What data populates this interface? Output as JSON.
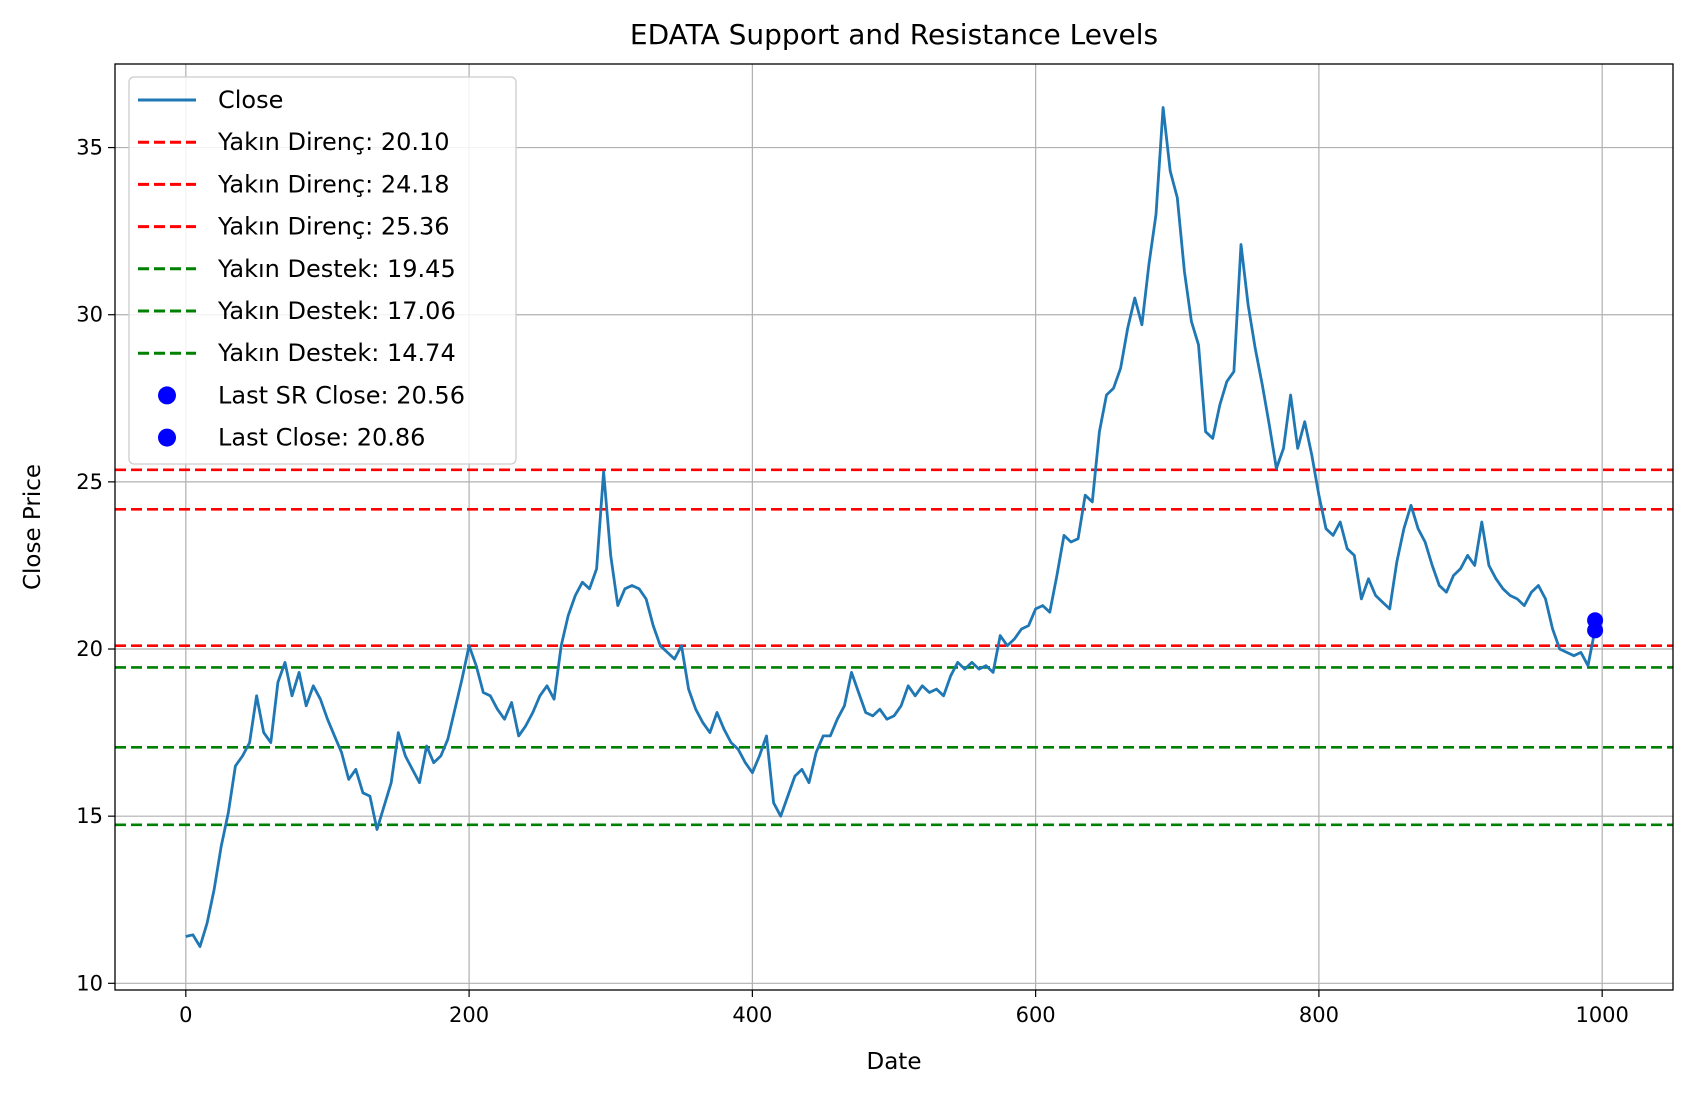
{
  "chart_data": {
    "type": "line",
    "title": "EDATA Support and Resistance Levels",
    "xlabel": "Date",
    "ylabel": "Close Price",
    "xlim": [
      -50,
      1050
    ],
    "ylim": [
      9.8,
      37.5
    ],
    "xticks": [
      0,
      200,
      400,
      600,
      800,
      1000
    ],
    "yticks": [
      10,
      15,
      20,
      25,
      30,
      35
    ],
    "grid": true,
    "legend_position": "upper-left",
    "series": [
      {
        "name": "Close",
        "color": "#1f77b4",
        "style": "line",
        "points": [
          [
            0,
            11.4
          ],
          [
            5,
            11.45
          ],
          [
            10,
            11.1
          ],
          [
            15,
            11.8
          ],
          [
            20,
            12.8
          ],
          [
            25,
            14.1
          ],
          [
            30,
            15.1
          ],
          [
            35,
            16.5
          ],
          [
            40,
            16.8
          ],
          [
            45,
            17.2
          ],
          [
            50,
            18.6
          ],
          [
            55,
            17.5
          ],
          [
            60,
            17.2
          ],
          [
            65,
            19.0
          ],
          [
            70,
            19.6
          ],
          [
            75,
            18.6
          ],
          [
            80,
            19.3
          ],
          [
            85,
            18.3
          ],
          [
            90,
            18.9
          ],
          [
            95,
            18.5
          ],
          [
            100,
            17.9
          ],
          [
            105,
            17.4
          ],
          [
            110,
            16.9
          ],
          [
            115,
            16.1
          ],
          [
            120,
            16.4
          ],
          [
            125,
            15.7
          ],
          [
            130,
            15.6
          ],
          [
            135,
            14.6
          ],
          [
            140,
            15.3
          ],
          [
            145,
            16.0
          ],
          [
            150,
            17.5
          ],
          [
            155,
            16.8
          ],
          [
            160,
            16.4
          ],
          [
            165,
            16.0
          ],
          [
            170,
            17.1
          ],
          [
            175,
            16.6
          ],
          [
            180,
            16.8
          ],
          [
            185,
            17.3
          ],
          [
            190,
            18.2
          ],
          [
            195,
            19.1
          ],
          [
            200,
            20.1
          ],
          [
            205,
            19.5
          ],
          [
            210,
            18.7
          ],
          [
            215,
            18.6
          ],
          [
            220,
            18.2
          ],
          [
            225,
            17.9
          ],
          [
            230,
            18.4
          ],
          [
            235,
            17.4
          ],
          [
            240,
            17.7
          ],
          [
            245,
            18.1
          ],
          [
            250,
            18.6
          ],
          [
            255,
            18.9
          ],
          [
            260,
            18.5
          ],
          [
            265,
            20.1
          ],
          [
            270,
            21.0
          ],
          [
            275,
            21.6
          ],
          [
            280,
            22.0
          ],
          [
            285,
            21.8
          ],
          [
            290,
            22.4
          ],
          [
            295,
            25.3
          ],
          [
            300,
            22.8
          ],
          [
            305,
            21.3
          ],
          [
            310,
            21.8
          ],
          [
            315,
            21.9
          ],
          [
            320,
            21.8
          ],
          [
            325,
            21.5
          ],
          [
            330,
            20.7
          ],
          [
            335,
            20.1
          ],
          [
            340,
            19.9
          ],
          [
            345,
            19.7
          ],
          [
            350,
            20.1
          ],
          [
            355,
            18.8
          ],
          [
            360,
            18.2
          ],
          [
            365,
            17.8
          ],
          [
            370,
            17.5
          ],
          [
            375,
            18.1
          ],
          [
            380,
            17.6
          ],
          [
            385,
            17.2
          ],
          [
            390,
            17.0
          ],
          [
            395,
            16.6
          ],
          [
            400,
            16.3
          ],
          [
            405,
            16.8
          ],
          [
            410,
            17.4
          ],
          [
            415,
            15.4
          ],
          [
            420,
            15.0
          ],
          [
            425,
            15.6
          ],
          [
            430,
            16.2
          ],
          [
            435,
            16.4
          ],
          [
            440,
            16.0
          ],
          [
            445,
            16.9
          ],
          [
            450,
            17.4
          ],
          [
            455,
            17.4
          ],
          [
            460,
            17.9
          ],
          [
            465,
            18.3
          ],
          [
            470,
            19.3
          ],
          [
            475,
            18.7
          ],
          [
            480,
            18.1
          ],
          [
            485,
            18.0
          ],
          [
            490,
            18.2
          ],
          [
            495,
            17.9
          ],
          [
            500,
            18.0
          ],
          [
            505,
            18.3
          ],
          [
            510,
            18.9
          ],
          [
            515,
            18.6
          ],
          [
            520,
            18.9
          ],
          [
            525,
            18.7
          ],
          [
            530,
            18.8
          ],
          [
            535,
            18.6
          ],
          [
            540,
            19.2
          ],
          [
            545,
            19.6
          ],
          [
            550,
            19.4
          ],
          [
            555,
            19.6
          ],
          [
            560,
            19.4
          ],
          [
            565,
            19.5
          ],
          [
            570,
            19.3
          ],
          [
            575,
            20.4
          ],
          [
            580,
            20.1
          ],
          [
            585,
            20.3
          ],
          [
            590,
            20.6
          ],
          [
            595,
            20.7
          ],
          [
            600,
            21.2
          ],
          [
            605,
            21.3
          ],
          [
            610,
            21.1
          ],
          [
            615,
            22.2
          ],
          [
            620,
            23.4
          ],
          [
            625,
            23.2
          ],
          [
            630,
            23.3
          ],
          [
            635,
            24.6
          ],
          [
            640,
            24.4
          ],
          [
            645,
            26.5
          ],
          [
            650,
            27.6
          ],
          [
            655,
            27.8
          ],
          [
            660,
            28.4
          ],
          [
            665,
            29.6
          ],
          [
            670,
            30.5
          ],
          [
            675,
            29.7
          ],
          [
            680,
            31.5
          ],
          [
            685,
            33.0
          ],
          [
            690,
            36.2
          ],
          [
            695,
            34.3
          ],
          [
            700,
            33.5
          ],
          [
            705,
            31.3
          ],
          [
            710,
            29.8
          ],
          [
            715,
            29.1
          ],
          [
            720,
            26.5
          ],
          [
            725,
            26.3
          ],
          [
            730,
            27.3
          ],
          [
            735,
            28.0
          ],
          [
            740,
            28.3
          ],
          [
            745,
            32.1
          ],
          [
            750,
            30.3
          ],
          [
            755,
            29.0
          ],
          [
            760,
            27.9
          ],
          [
            765,
            26.7
          ],
          [
            770,
            25.4
          ],
          [
            775,
            26.0
          ],
          [
            780,
            27.6
          ],
          [
            785,
            26.0
          ],
          [
            790,
            26.8
          ],
          [
            795,
            25.8
          ],
          [
            800,
            24.6
          ],
          [
            805,
            23.6
          ],
          [
            810,
            23.4
          ],
          [
            815,
            23.8
          ],
          [
            820,
            23.0
          ],
          [
            825,
            22.8
          ],
          [
            830,
            21.5
          ],
          [
            835,
            22.1
          ],
          [
            840,
            21.6
          ],
          [
            845,
            21.4
          ],
          [
            850,
            21.2
          ],
          [
            855,
            22.6
          ],
          [
            860,
            23.6
          ],
          [
            865,
            24.3
          ],
          [
            870,
            23.6
          ],
          [
            875,
            23.2
          ],
          [
            880,
            22.5
          ],
          [
            885,
            21.9
          ],
          [
            890,
            21.7
          ],
          [
            895,
            22.2
          ],
          [
            900,
            22.4
          ],
          [
            905,
            22.8
          ],
          [
            910,
            22.5
          ],
          [
            915,
            23.8
          ],
          [
            920,
            22.5
          ],
          [
            925,
            22.1
          ],
          [
            930,
            21.8
          ],
          [
            935,
            21.6
          ],
          [
            940,
            21.5
          ],
          [
            945,
            21.3
          ],
          [
            950,
            21.7
          ],
          [
            955,
            21.9
          ],
          [
            960,
            21.5
          ],
          [
            965,
            20.6
          ],
          [
            970,
            20.0
          ],
          [
            975,
            19.9
          ],
          [
            980,
            19.8
          ],
          [
            985,
            19.9
          ],
          [
            990,
            19.5
          ],
          [
            995,
            20.6
          ],
          [
            998,
            20.9
          ]
        ]
      }
    ],
    "hlines": [
      {
        "label": "Yakın Direnç: 20.10",
        "y": 20.1,
        "color": "#ff0000"
      },
      {
        "label": "Yakın Direnç: 24.18",
        "y": 24.18,
        "color": "#ff0000"
      },
      {
        "label": "Yakın Direnç: 25.36",
        "y": 25.36,
        "color": "#ff0000"
      },
      {
        "label": "Yakın Destek: 19.45",
        "y": 19.45,
        "color": "#008000"
      },
      {
        "label": "Yakın Destek: 17.06",
        "y": 17.06,
        "color": "#008000"
      },
      {
        "label": "Yakın Destek: 14.74",
        "y": 14.74,
        "color": "#008000"
      }
    ],
    "markers": [
      {
        "label": "Last SR Close: 20.56",
        "x": 995,
        "y": 20.56,
        "color": "#0000ff"
      },
      {
        "label": "Last Close: 20.86",
        "x": 995,
        "y": 20.86,
        "color": "#0000ff"
      }
    ]
  }
}
